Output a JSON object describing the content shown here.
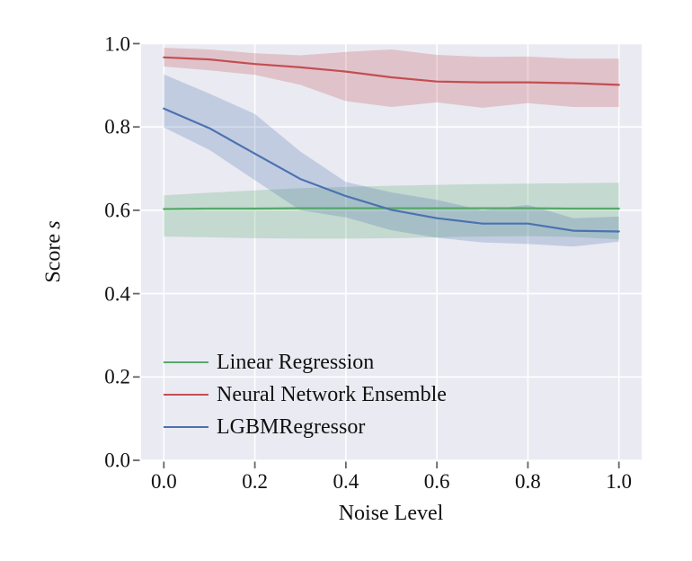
{
  "chart_data": {
    "type": "line",
    "title": "",
    "xlabel": "Noise Level",
    "ylabel": "Score s",
    "ylabel_parts": {
      "text": "Score",
      "math": "s"
    },
    "x": [
      0.0,
      0.1,
      0.2,
      0.3,
      0.4,
      0.5,
      0.6,
      0.7,
      0.8,
      0.9,
      1.0
    ],
    "series": [
      {
        "name": "Linear Regression",
        "color": "#55a868",
        "values": [
          0.603,
          0.604,
          0.604,
          0.605,
          0.605,
          0.605,
          0.605,
          0.605,
          0.605,
          0.604,
          0.604
        ],
        "band_lower": [
          0.537,
          0.535,
          0.533,
          0.532,
          0.532,
          0.533,
          0.535,
          0.537,
          0.538,
          0.536,
          0.53
        ],
        "band_upper": [
          0.636,
          0.642,
          0.648,
          0.653,
          0.656,
          0.659,
          0.661,
          0.663,
          0.664,
          0.665,
          0.666
        ]
      },
      {
        "name": "Neural Network Ensemble",
        "color": "#c44e52",
        "values": [
          0.967,
          0.962,
          0.951,
          0.943,
          0.933,
          0.919,
          0.909,
          0.907,
          0.907,
          0.905,
          0.901
        ],
        "band_lower": [
          0.945,
          0.936,
          0.925,
          0.901,
          0.862,
          0.848,
          0.859,
          0.846,
          0.857,
          0.848,
          0.848
        ],
        "band_upper": [
          0.99,
          0.986,
          0.977,
          0.972,
          0.98,
          0.986,
          0.973,
          0.968,
          0.969,
          0.964,
          0.964
        ]
      },
      {
        "name": "LGBMRegressor",
        "color": "#4c72b0",
        "values": [
          0.844,
          0.797,
          0.736,
          0.675,
          0.634,
          0.601,
          0.581,
          0.568,
          0.568,
          0.551,
          0.549
        ],
        "band_lower": [
          0.799,
          0.745,
          0.672,
          0.6,
          0.583,
          0.552,
          0.534,
          0.523,
          0.519,
          0.513,
          0.525
        ],
        "band_upper": [
          0.926,
          0.88,
          0.831,
          0.741,
          0.668,
          0.643,
          0.625,
          0.6,
          0.613,
          0.581,
          0.585
        ]
      }
    ],
    "xlim": [
      -0.05,
      1.05
    ],
    "ylim": [
      0.0,
      1.0
    ],
    "x_ticks": [
      0.0,
      0.2,
      0.4,
      0.6,
      0.8,
      1.0
    ],
    "x_tick_labels": [
      "0.0",
      "0.2",
      "0.4",
      "0.6",
      "0.8",
      "1.0"
    ],
    "y_ticks": [
      0.0,
      0.2,
      0.4,
      0.6,
      0.8,
      1.0
    ],
    "y_tick_labels": [
      "0.0",
      "0.2",
      "0.4",
      "0.6",
      "0.8",
      "1.0"
    ],
    "grid": true,
    "legend_position": "lower left",
    "plot_background": "#eaeaf2",
    "grid_color": "#ffffff",
    "tick_color": "#666666",
    "band_opacity": 0.25
  }
}
